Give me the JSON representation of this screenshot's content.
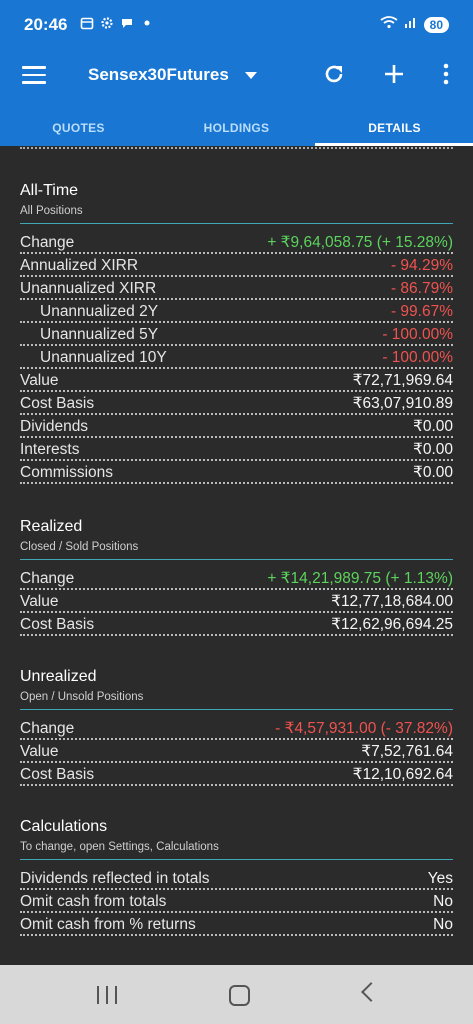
{
  "status_bar": {
    "time": "20:46",
    "battery": "80"
  },
  "app_bar": {
    "title": "Sensex30Futures"
  },
  "tabs": [
    {
      "label": "QUOTES"
    },
    {
      "label": "HOLDINGS"
    },
    {
      "label": "DETAILS"
    }
  ],
  "all_time": {
    "title": "All-Time",
    "subtitle": "All Positions",
    "rows": [
      {
        "label": "Change",
        "value": "+ ₹9,64,058.75 (+ 15.28%)"
      },
      {
        "label": "Annualized XIRR",
        "value": "- 94.29%"
      },
      {
        "label": "Unannualized XIRR",
        "value": "- 86.79%"
      },
      {
        "label": "Unannualized 2Y",
        "value": "- 99.67%"
      },
      {
        "label": "Unannualized 5Y",
        "value": "- 100.00%"
      },
      {
        "label": "Unannualized 10Y",
        "value": "- 100.00%"
      },
      {
        "label": "Value",
        "value": "₹72,71,969.64"
      },
      {
        "label": "Cost Basis",
        "value": "₹63,07,910.89"
      },
      {
        "label": "Dividends",
        "value": "₹0.00"
      },
      {
        "label": "Interests",
        "value": "₹0.00"
      },
      {
        "label": "Commissions",
        "value": "₹0.00"
      }
    ]
  },
  "realized": {
    "title": "Realized",
    "subtitle": "Closed / Sold Positions",
    "rows": [
      {
        "label": "Change",
        "value": "+ ₹14,21,989.75 (+ 1.13%)"
      },
      {
        "label": "Value",
        "value": "₹12,77,18,684.00"
      },
      {
        "label": "Cost Basis",
        "value": "₹12,62,96,694.25"
      }
    ]
  },
  "unrealized": {
    "title": "Unrealized",
    "subtitle": "Open / Unsold Positions",
    "rows": [
      {
        "label": "Change",
        "value": "- ₹4,57,931.00 (- 37.82%)"
      },
      {
        "label": "Value",
        "value": "₹7,52,761.64"
      },
      {
        "label": "Cost Basis",
        "value": "₹12,10,692.64"
      }
    ]
  },
  "calculations": {
    "title": "Calculations",
    "subtitle": "To change, open Settings, Calculations",
    "rows": [
      {
        "label": "Dividends reflected in totals",
        "value": "Yes"
      },
      {
        "label": "Omit cash from totals",
        "value": "No"
      },
      {
        "label": "Omit cash from % returns",
        "value": "No"
      }
    ]
  },
  "colors": {
    "app_bar": "#1976d2",
    "positive": "#5cd35c",
    "negative": "#ef5350",
    "accent_rule": "#3fa6b6",
    "background": "#2b2b2b"
  },
  "icons": [
    "menu-icon",
    "dropdown-icon",
    "refresh-icon",
    "add-icon",
    "more-icon",
    "recents-icon",
    "home-icon",
    "back-icon"
  ]
}
